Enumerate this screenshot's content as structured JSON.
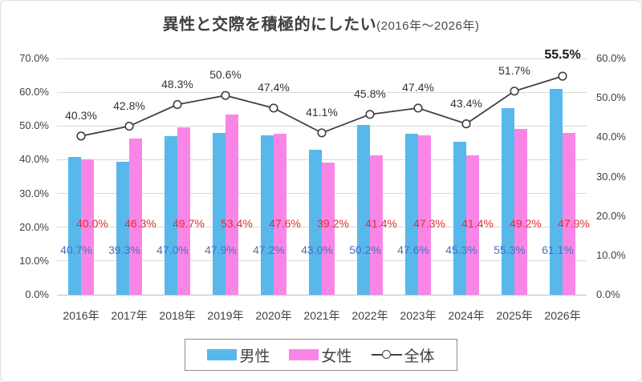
{
  "title": {
    "main": "異性と交際を積極的にしたい",
    "sub": "(2016年～2026年)"
  },
  "colors": {
    "male_bar": "#58B8EC",
    "female_bar": "#F986E7",
    "line": "#404040",
    "marker_fill": "#FFFFFF",
    "male_label": "#4472C4",
    "female_label": "#E03030",
    "total_label": "#333333",
    "grid": "#D9D9D9",
    "axis_line": "#BFBFBF",
    "tick_text": "#404040"
  },
  "chart_data": {
    "type": "bar",
    "subtype": "combo bar+line, line on secondary axis",
    "title": "異性と交際を積極的にしたい(2016年～2026年)",
    "categories": [
      "2016年",
      "2017年",
      "2018年",
      "2019年",
      "2020年",
      "2021年",
      "2022年",
      "2023年",
      "2024年",
      "2025年",
      "2026年"
    ],
    "series": [
      {
        "name": "男性",
        "type": "bar",
        "axis": "left",
        "values": [
          40.7,
          39.3,
          47.0,
          47.9,
          47.2,
          43.0,
          50.2,
          47.6,
          45.3,
          55.3,
          61.1
        ],
        "labels": [
          "40.7%",
          "39.3%",
          "47.0%",
          "47.9%",
          "47.2%",
          "43.0%",
          "50.2%",
          "47.6%",
          "45.3%",
          "55.3%",
          "61.1%"
        ]
      },
      {
        "name": "女性",
        "type": "bar",
        "axis": "left",
        "values": [
          40.0,
          46.3,
          49.7,
          53.4,
          47.6,
          39.2,
          41.4,
          47.3,
          41.4,
          49.2,
          47.9
        ],
        "labels": [
          "40.0%",
          "46.3%",
          "49.7%",
          "53.4%",
          "47.6%",
          "39.2%",
          "41.4%",
          "47.3%",
          "41.4%",
          "49.2%",
          "47.9%"
        ]
      },
      {
        "name": "全体",
        "type": "line",
        "axis": "right",
        "values": [
          40.3,
          42.8,
          48.3,
          50.6,
          47.4,
          41.1,
          45.8,
          47.4,
          43.4,
          51.7,
          55.5
        ],
        "labels": [
          "40.3%",
          "42.8%",
          "48.3%",
          "50.6%",
          "47.4%",
          "41.1%",
          "45.8%",
          "47.4%",
          "43.4%",
          "51.7%",
          "55.5%"
        ]
      }
    ],
    "left_axis": {
      "min": 0,
      "max": 70,
      "step": 10,
      "tick_labels": [
        "70.0%",
        "60.0%",
        "50.0%",
        "40.0%",
        "30.0%",
        "20.0%",
        "10.0%",
        "0.0%"
      ]
    },
    "right_axis": {
      "min": 0,
      "max": 60,
      "step": 10,
      "tick_labels": [
        "60.0%",
        "50.0%",
        "40.0%",
        "30.0%",
        "20.0%",
        "10.0%",
        "0.0%"
      ]
    },
    "grid": true,
    "legend": {
      "position": "bottom",
      "items": [
        "男性",
        "女性",
        "全体"
      ]
    }
  }
}
